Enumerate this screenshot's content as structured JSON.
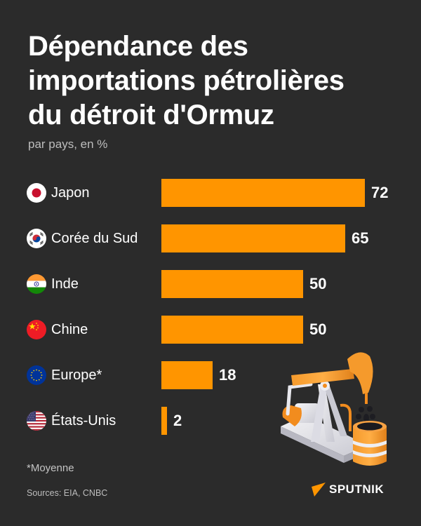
{
  "header": {
    "title_lines": [
      "Dépendance des",
      "importations pétrolières",
      "du détroit d'Ormuz"
    ],
    "subtitle": "par pays, en %"
  },
  "chart_data": {
    "type": "bar",
    "orientation": "horizontal",
    "title": "Dépendance des importations pétrolières du détroit d'Ormuz",
    "subtitle": "par pays, en %",
    "categories": [
      "Japon",
      "Corée du Sud",
      "Inde",
      "Chine",
      "Europe*",
      "États-Unis"
    ],
    "values": [
      72,
      65,
      50,
      50,
      18,
      2
    ],
    "xlabel": "",
    "ylabel": "",
    "unit": "%",
    "grid": false,
    "legend": null,
    "bar_color": "#ff9500",
    "annotations": [
      "*Moyenne"
    ]
  },
  "rows": [
    {
      "label": "Japon",
      "value": "72",
      "flag": "japan-flag-icon"
    },
    {
      "label": "Corée du Sud",
      "value": "65",
      "flag": "south-korea-flag-icon"
    },
    {
      "label": "Inde",
      "value": "50",
      "flag": "india-flag-icon"
    },
    {
      "label": "Chine",
      "value": "50",
      "flag": "china-flag-icon"
    },
    {
      "label": "Europe*",
      "value": "18",
      "flag": "eu-flag-icon"
    },
    {
      "label": "États-Unis",
      "value": "2",
      "flag": "usa-flag-icon"
    }
  ],
  "footer": {
    "footnote": "*Moyenne",
    "sources": "Sources: EIA, CNBC",
    "brand": "SPUTNIK"
  },
  "colors": {
    "background": "#2b2b2b",
    "bar": "#ff9500",
    "text": "#ffffff",
    "muted_text": "#bdbdbd"
  }
}
